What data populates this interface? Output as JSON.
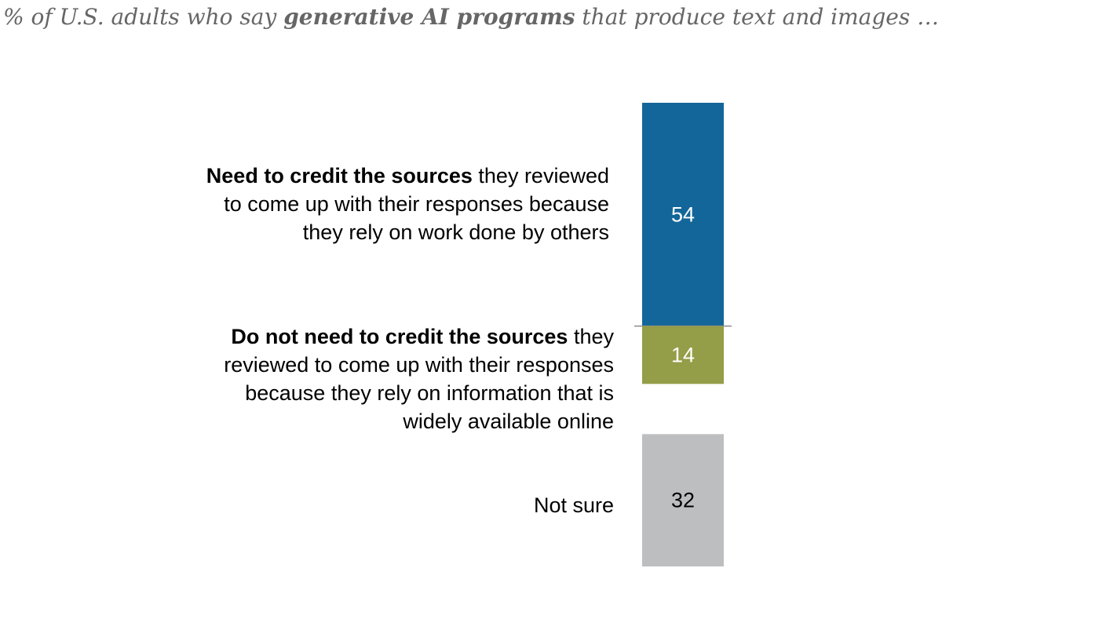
{
  "chart_data": {
    "type": "bar",
    "orientation": "stacked-vertical",
    "subtitle": {
      "prefix": "% of U.S. adults who say ",
      "emphasis": "generative AI programs",
      "suffix": " that produce text and images …"
    },
    "categories": [
      {
        "name": "credit-needed",
        "label_bold": "Need to credit the sources",
        "label_rest_1": " they reviewed",
        "label_rest_2": "to come up with their responses because",
        "label_rest_3": "they rely on work done by others",
        "label_rest_4": "",
        "value": 54,
        "color": "#136699",
        "label_color": "#ffffff"
      },
      {
        "name": "credit-not-needed",
        "label_bold": "Do not need to credit the sources",
        "label_rest_1": " they",
        "label_rest_2": "reviewed to come up with their responses",
        "label_rest_3": "because they rely on information that is",
        "label_rest_4": "widely available online",
        "value": 14,
        "color": "#949d48",
        "label_color": "#ffffff"
      },
      {
        "name": "not-sure",
        "label_bold": "",
        "label_rest_1": "Not sure",
        "label_rest_2": "",
        "label_rest_3": "",
        "label_rest_4": "",
        "value": 32,
        "color": "#bcbec0",
        "label_color": "#000000"
      }
    ],
    "divider_color": "#8c8c8c",
    "total": 100
  }
}
